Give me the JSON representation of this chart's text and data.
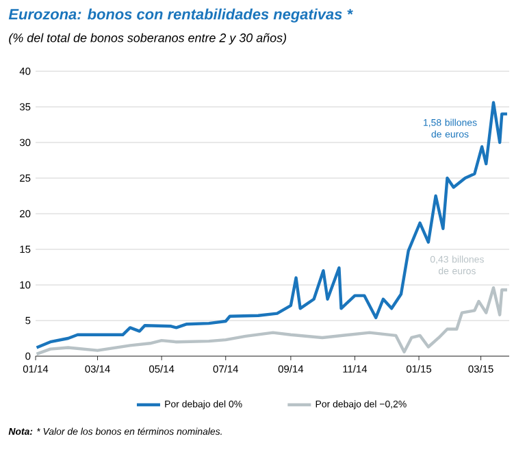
{
  "chart_data": {
    "type": "line",
    "title": "Eurozona: bonos con rentabilidades negativas *",
    "subtitle": "(% del total de bonos soberanos entre 2 y 30 años)",
    "xlim": [
      "2014-01-01",
      "2015-03-28"
    ],
    "xticks": [
      {
        "value": "2014-01-01",
        "label": "01/14"
      },
      {
        "value": "2014-03-01",
        "label": "03/14"
      },
      {
        "value": "2014-05-01",
        "label": "05/14"
      },
      {
        "value": "2014-07-01",
        "label": "07/14"
      },
      {
        "value": "2014-09-01",
        "label": "09/14"
      },
      {
        "value": "2014-11-01",
        "label": "11/14"
      },
      {
        "value": "2015-01-01",
        "label": "01/15"
      },
      {
        "value": "2015-03-01",
        "label": "03/15"
      }
    ],
    "ylim": [
      0,
      40
    ],
    "yticks": [
      0,
      5,
      10,
      15,
      20,
      25,
      30,
      35,
      40
    ],
    "grid": "y",
    "legend": "bottom",
    "marker": "none",
    "series": [
      {
        "name": "Por debajo del 0%",
        "color": "#1a75bc",
        "x": [
          "2014-01-02",
          "2014-01-15",
          "2014-02-01",
          "2014-02-10",
          "2014-03-15",
          "2014-03-25",
          "2014-04-01",
          "2014-04-10",
          "2014-04-15",
          "2014-05-10",
          "2014-05-15",
          "2014-05-25",
          "2014-06-15",
          "2014-07-01",
          "2014-07-05",
          "2014-08-01",
          "2014-08-19",
          "2014-09-01",
          "2014-09-06",
          "2014-09-10",
          "2014-09-23",
          "2014-10-02",
          "2014-10-06",
          "2014-10-17",
          "2014-10-19",
          "2014-11-01",
          "2014-11-10",
          "2014-11-21",
          "2014-11-28",
          "2014-12-06",
          "2014-12-15",
          "2014-12-22",
          "2015-01-02",
          "2015-01-10",
          "2015-01-17",
          "2015-01-24",
          "2015-01-28",
          "2015-02-03",
          "2015-02-14",
          "2015-02-23",
          "2015-03-02",
          "2015-03-06",
          "2015-03-13",
          "2015-03-19",
          "2015-03-21",
          "2015-03-26"
        ],
        "values": [
          1.2,
          2.0,
          2.5,
          3.0,
          3.0,
          3.0,
          4.0,
          3.5,
          4.3,
          4.2,
          4.0,
          4.5,
          4.6,
          4.9,
          5.6,
          5.7,
          6.0,
          7.1,
          11,
          6.7,
          8,
          12,
          8,
          12.4,
          6.7,
          8.5,
          8.5,
          5.4,
          8,
          6.7,
          8.7,
          14.8,
          18.7,
          16,
          22.5,
          17.9,
          25,
          23.7,
          25,
          25.6,
          29.4,
          27,
          35.6,
          30,
          34,
          34
        ]
      },
      {
        "name": "Por debajo del −0,2%",
        "color": "#b8c2c6",
        "x": [
          "2014-01-02",
          "2014-01-15",
          "2014-02-01",
          "2014-03-01",
          "2014-04-01",
          "2014-04-20",
          "2014-05-01",
          "2014-05-15",
          "2014-06-15",
          "2014-07-01",
          "2014-07-20",
          "2014-08-15",
          "2014-09-01",
          "2014-10-01",
          "2014-11-15",
          "2014-12-10",
          "2014-12-18",
          "2014-12-25",
          "2015-01-02",
          "2015-01-10",
          "2015-01-20",
          "2015-01-28",
          "2015-02-06",
          "2015-02-11",
          "2015-02-23",
          "2015-02-27",
          "2015-03-06",
          "2015-03-13",
          "2015-03-19",
          "2015-03-21",
          "2015-03-26"
        ],
        "values": [
          0.3,
          1.0,
          1.2,
          0.8,
          1.5,
          1.8,
          2.2,
          2.0,
          2.1,
          2.3,
          2.8,
          3.3,
          3.0,
          2.6,
          3.3,
          2.9,
          0.6,
          2.6,
          2.9,
          1.3,
          2.6,
          3.8,
          3.8,
          6.1,
          6.4,
          7.7,
          6.1,
          9.6,
          5.8,
          9.3,
          9.3
        ]
      }
    ],
    "annotations": [
      "1,58 billones de euros",
      "0,43 billones de euros",
      "**Nota:** * Valor de los bonos en términos nominales."
    ]
  }
}
